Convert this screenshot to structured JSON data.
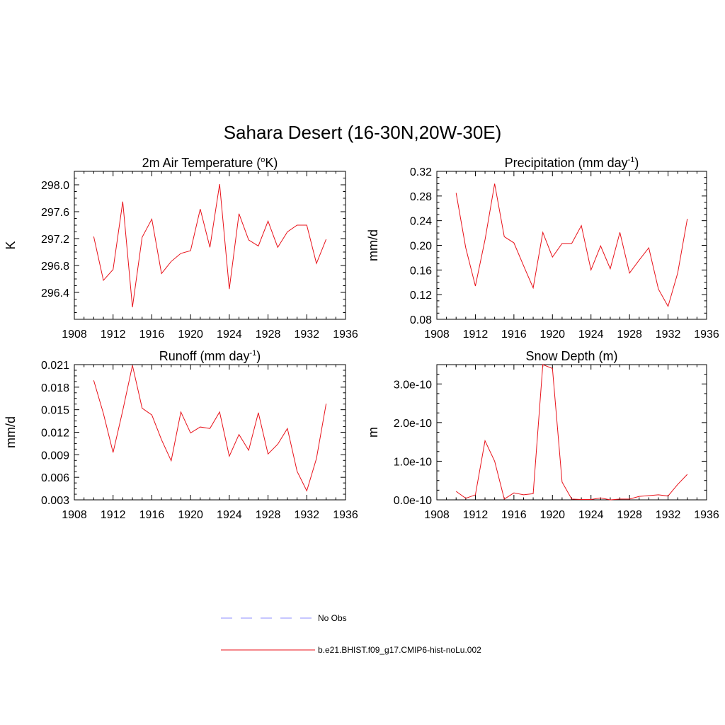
{
  "title": "Sahara Desert (16-30N,20W-30E)",
  "series_color": "#e8121a",
  "obs_color": "#8c8cff",
  "legend": {
    "items": [
      {
        "label": "No Obs",
        "style": "dashed",
        "color": "#8c8cff"
      },
      {
        "label": "b.e21.BHIST.f09_g17.CMIP6-hist-noLu.002",
        "style": "solid",
        "color": "#e8121a"
      }
    ]
  },
  "chart_data": [
    {
      "type": "line",
      "title": "2m Air Temperature (",
      "title_sup": "o",
      "title_suffix": "K)",
      "ylabel": "K",
      "xlim": [
        1908,
        1936
      ],
      "xticks": [
        1908,
        1912,
        1916,
        1920,
        1924,
        1928,
        1932,
        1936
      ],
      "ylim": [
        296.0,
        298.2
      ],
      "yticks": [
        296.4,
        296.8,
        297.2,
        297.6,
        298.0
      ],
      "ytick_labels": [
        "296.4",
        "296.8",
        "297.2",
        "297.6",
        "298.0"
      ],
      "x": [
        1910,
        1911,
        1912,
        1913,
        1914,
        1915,
        1916,
        1917,
        1918,
        1919,
        1920,
        1921,
        1922,
        1923,
        1924,
        1925,
        1926,
        1927,
        1928,
        1929,
        1930,
        1931,
        1932,
        1933,
        1934
      ],
      "series": [
        {
          "values": [
            297.23,
            296.58,
            296.74,
            297.75,
            296.18,
            297.22,
            297.49,
            296.68,
            296.86,
            296.98,
            297.02,
            297.64,
            297.07,
            298.01,
            296.45,
            297.57,
            297.18,
            297.09,
            297.46,
            297.07,
            297.3,
            297.4,
            297.4,
            296.83,
            297.19
          ]
        }
      ]
    },
    {
      "type": "line",
      "title": "Precipitation (mm day",
      "title_sup": "-1",
      "title_suffix": ")",
      "ylabel": "mm/d",
      "xlim": [
        1908,
        1936
      ],
      "xticks": [
        1908,
        1912,
        1916,
        1920,
        1924,
        1928,
        1932,
        1936
      ],
      "ylim": [
        0.08,
        0.32
      ],
      "yticks": [
        0.08,
        0.12,
        0.16,
        0.2,
        0.24,
        0.28,
        0.32
      ],
      "ytick_labels": [
        "0.08",
        "0.12",
        "0.16",
        "0.20",
        "0.24",
        "0.28",
        "0.32"
      ],
      "x": [
        1910,
        1911,
        1912,
        1913,
        1914,
        1915,
        1916,
        1917,
        1918,
        1919,
        1920,
        1921,
        1922,
        1923,
        1924,
        1925,
        1926,
        1927,
        1928,
        1929,
        1930,
        1931,
        1932,
        1933,
        1934
      ],
      "series": [
        {
          "values": [
            0.285,
            0.196,
            0.134,
            0.209,
            0.3,
            0.214,
            0.204,
            0.167,
            0.131,
            0.221,
            0.181,
            0.203,
            0.203,
            0.232,
            0.16,
            0.199,
            0.162,
            0.221,
            0.155,
            0.176,
            0.196,
            0.129,
            0.101,
            0.155,
            0.243
          ]
        }
      ]
    },
    {
      "type": "line",
      "title": "Runoff (mm day",
      "title_sup": "-1",
      "title_suffix": ")",
      "ylabel": "mm/d",
      "xlim": [
        1908,
        1936
      ],
      "xticks": [
        1908,
        1912,
        1916,
        1920,
        1924,
        1928,
        1932,
        1936
      ],
      "ylim": [
        0.003,
        0.021
      ],
      "yticks": [
        0.003,
        0.006,
        0.009,
        0.012,
        0.015,
        0.018,
        0.021
      ],
      "ytick_labels": [
        "0.003",
        "0.006",
        "0.009",
        "0.012",
        "0.015",
        "0.018",
        "0.021"
      ],
      "x": [
        1910,
        1911,
        1912,
        1913,
        1914,
        1915,
        1916,
        1917,
        1918,
        1919,
        1920,
        1921,
        1922,
        1923,
        1924,
        1925,
        1926,
        1927,
        1928,
        1929,
        1930,
        1931,
        1932,
        1933,
        1934
      ],
      "series": [
        {
          "values": [
            0.0189,
            0.0145,
            0.0093,
            0.0149,
            0.0209,
            0.0152,
            0.0143,
            0.011,
            0.0082,
            0.0147,
            0.0119,
            0.0127,
            0.0125,
            0.0147,
            0.0088,
            0.0117,
            0.0096,
            0.0146,
            0.0091,
            0.0104,
            0.0125,
            0.0068,
            0.0042,
            0.0085,
            0.0158
          ]
        }
      ]
    },
    {
      "type": "line",
      "title": "Snow Depth (m)",
      "title_sup": "",
      "title_suffix": "",
      "ylabel": "m",
      "xlim": [
        1908,
        1936
      ],
      "xticks": [
        1908,
        1912,
        1916,
        1920,
        1924,
        1928,
        1932,
        1936
      ],
      "ylim": [
        0,
        3.5e-10
      ],
      "yticks": [
        0,
        1e-10,
        2e-10,
        3e-10
      ],
      "ytick_labels": [
        "0.0e-10",
        "1.0e-10",
        "2.0e-10",
        "3.0e-10"
      ],
      "x": [
        1910,
        1911,
        1912,
        1913,
        1914,
        1915,
        1916,
        1917,
        1918,
        1919,
        1920,
        1921,
        1922,
        1923,
        1924,
        1925,
        1926,
        1927,
        1928,
        1929,
        1930,
        1931,
        1932,
        1933,
        1934
      ],
      "series": [
        {
          "values": [
            2.2e-11,
            4e-12,
            1.3e-11,
            1.53e-10,
            1e-10,
            2e-12,
            1.8e-11,
            1.3e-11,
            1.6e-11,
            3.5e-10,
            3.4e-10,
            4.6e-11,
            2e-12,
            1e-12,
            1e-12,
            5e-12,
            0,
            2e-12,
            2e-12,
            9e-12,
            1.1e-11,
            1.3e-11,
            1e-11,
            4e-11,
            6.6e-11
          ]
        }
      ]
    }
  ]
}
